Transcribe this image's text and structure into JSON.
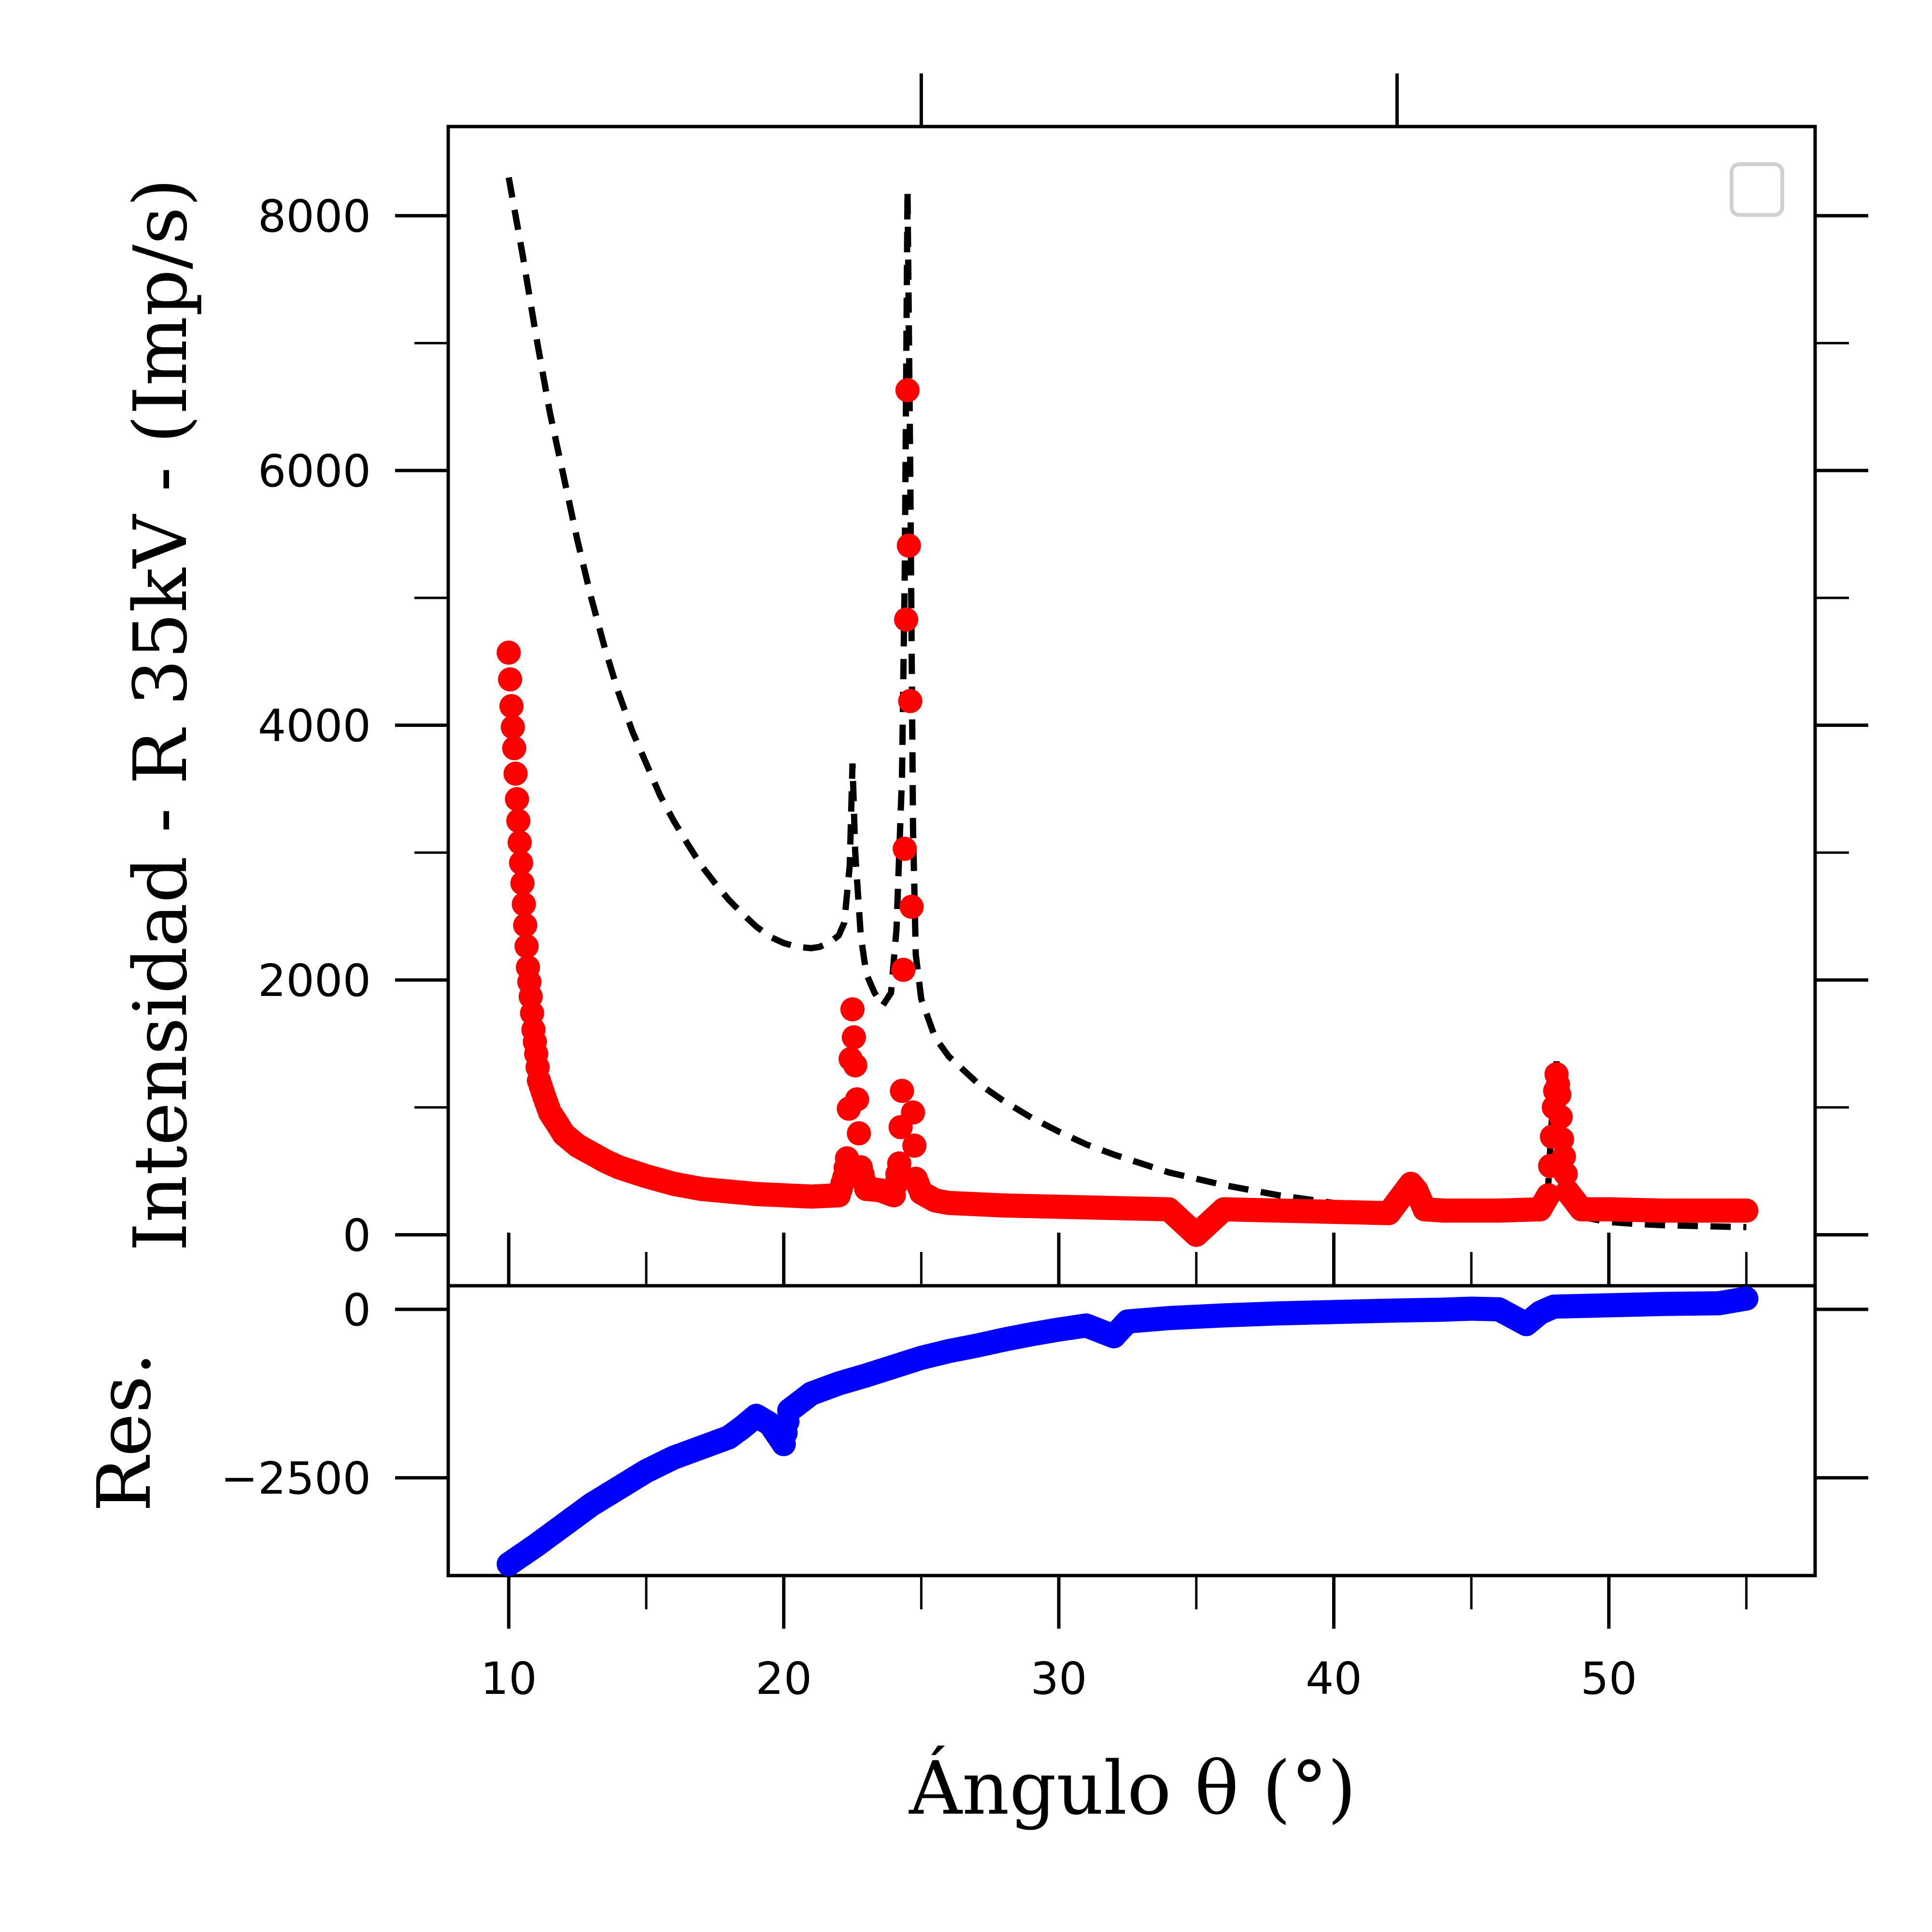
{
  "chart_data": [
    {
      "type": "scatter",
      "panel": "main",
      "ylabel": "Intensidad - R 35kV - (Imp/s)",
      "xlim": [
        7.8,
        57.5
      ],
      "ylim": [
        -400,
        8700
      ],
      "x_ticks_major": [
        10,
        20,
        30,
        40,
        50
      ],
      "x_ticks_minor": [
        15,
        25,
        35,
        45,
        55
      ],
      "y_ticks_major": [
        0,
        2000,
        4000,
        6000,
        8000
      ],
      "y_ticks_minor": [
        1000,
        3000,
        5000,
        7000
      ],
      "y_tick_labels": [
        "0",
        "2000",
        "4000",
        "6000",
        "8000"
      ],
      "top_ticks": [
        25,
        42.3
      ],
      "legend": {
        "placement": "top-right",
        "entries": []
      },
      "grid": false,
      "series": [
        {
          "style": "dashed-line",
          "color": "#000000",
          "points": [
            [
              10,
              8300
            ],
            [
              10.5,
              7700
            ],
            [
              11,
              7050
            ],
            [
              11.5,
              6450
            ],
            [
              12,
              5950
            ],
            [
              12.5,
              5450
            ],
            [
              13,
              5000
            ],
            [
              13.5,
              4600
            ],
            [
              14,
              4250
            ],
            [
              14.5,
              3950
            ],
            [
              15,
              3700
            ],
            [
              15.5,
              3450
            ],
            [
              16,
              3250
            ],
            [
              16.5,
              3070
            ],
            [
              17,
              2900
            ],
            [
              17.5,
              2760
            ],
            [
              18,
              2630
            ],
            [
              18.5,
              2520
            ],
            [
              19,
              2420
            ],
            [
              19.5,
              2340
            ],
            [
              20,
              2290
            ],
            [
              20.5,
              2260
            ],
            [
              21,
              2250
            ],
            [
              21.3,
              2260
            ],
            [
              21.7,
              2300
            ],
            [
              22,
              2350
            ],
            [
              22.2,
              2450
            ],
            [
              22.4,
              2900
            ],
            [
              22.5,
              3700
            ],
            [
              22.6,
              3000
            ],
            [
              22.8,
              2350
            ],
            [
              23,
              2050
            ],
            [
              23.3,
              1900
            ],
            [
              23.6,
              1800
            ],
            [
              23.9,
              1900
            ],
            [
              24.1,
              2400
            ],
            [
              24.3,
              3600
            ],
            [
              24.4,
              5200
            ],
            [
              24.5,
              8200
            ],
            [
              24.6,
              6000
            ],
            [
              24.7,
              3200
            ],
            [
              24.8,
              2200
            ],
            [
              25,
              1850
            ],
            [
              25.5,
              1550
            ],
            [
              26,
              1400
            ],
            [
              27,
              1200
            ],
            [
              28,
              1050
            ],
            [
              29,
              920
            ],
            [
              30,
              810
            ],
            [
              31,
              710
            ],
            [
              32,
              630
            ],
            [
              33,
              560
            ],
            [
              34,
              490
            ],
            [
              35,
              440
            ],
            [
              36,
              390
            ],
            [
              37,
              350
            ],
            [
              38,
              310
            ],
            [
              39,
              280
            ],
            [
              40,
              250
            ],
            [
              41,
              225
            ],
            [
              42,
              205
            ],
            [
              42.5,
              210
            ],
            [
              42.8,
              380
            ],
            [
              43,
              300
            ],
            [
              43.3,
              190
            ],
            [
              44,
              170
            ],
            [
              45,
              150
            ],
            [
              46,
              135
            ],
            [
              47,
              130
            ],
            [
              47.5,
              150
            ],
            [
              47.8,
              400
            ],
            [
              48,
              1200
            ],
            [
              48.1,
              1360
            ],
            [
              48.2,
              1100
            ],
            [
              48.5,
              300
            ],
            [
              49,
              140
            ],
            [
              50,
              100
            ],
            [
              51,
              85
            ],
            [
              52,
              75
            ],
            [
              53,
              70
            ],
            [
              54,
              65
            ],
            [
              55,
              60
            ]
          ]
        },
        {
          "style": "markers",
          "color": "#ff0000",
          "description": "",
          "baseline": [
            [
              10,
              4570
            ],
            [
              10.1,
              4150
            ],
            [
              10.2,
              3820
            ],
            [
              10.3,
              3420
            ],
            [
              10.4,
              3080
            ],
            [
              10.5,
              2760
            ],
            [
              10.6,
              2430
            ],
            [
              10.7,
              2100
            ],
            [
              10.8,
              1870
            ],
            [
              10.9,
              1610
            ],
            [
              11,
              1420
            ],
            [
              11.1,
              1210
            ],
            [
              11.3,
              1080
            ],
            [
              11.5,
              960
            ],
            [
              11.8,
              860
            ],
            [
              12,
              790
            ],
            [
              12.5,
              700
            ],
            [
              13,
              640
            ],
            [
              13.5,
              580
            ],
            [
              14,
              530
            ],
            [
              15,
              460
            ],
            [
              16,
              400
            ],
            [
              17,
              360
            ],
            [
              18,
              340
            ],
            [
              19,
              320
            ],
            [
              20,
              310
            ],
            [
              21,
              300
            ],
            [
              22,
              310
            ],
            [
              22.2,
              450
            ],
            [
              22.3,
              600
            ],
            [
              22.5,
              1770
            ],
            [
              22.6,
              1330
            ],
            [
              22.8,
              530
            ],
            [
              23,
              360
            ],
            [
              23.5,
              350
            ],
            [
              24,
              310
            ],
            [
              24.2,
              560
            ],
            [
              24.3,
              1130
            ],
            [
              24.4,
              3030
            ],
            [
              24.5,
              6630
            ],
            [
              24.6,
              4190
            ],
            [
              24.7,
              960
            ],
            [
              24.8,
              440
            ],
            [
              25,
              330
            ],
            [
              25.5,
              270
            ],
            [
              26,
              250
            ],
            [
              28,
              230
            ],
            [
              30,
              220
            ],
            [
              32,
              210
            ],
            [
              34,
              200
            ],
            [
              35,
              0
            ],
            [
              36,
              200
            ],
            [
              38,
              190
            ],
            [
              40,
              180
            ],
            [
              42,
              170
            ],
            [
              42.8,
              400
            ],
            [
              43,
              350
            ],
            [
              43.3,
              200
            ],
            [
              44,
              190
            ],
            [
              46,
              190
            ],
            [
              47.5,
              200
            ],
            [
              47.8,
              310
            ],
            [
              48,
              1000
            ],
            [
              48.1,
              1260
            ],
            [
              48.2,
              1100
            ],
            [
              48.3,
              750
            ],
            [
              48.5,
              340
            ],
            [
              49,
              200
            ],
            [
              50,
              200
            ],
            [
              52,
              190
            ],
            [
              54,
              190
            ],
            [
              55,
              190
            ]
          ]
        }
      ]
    },
    {
      "type": "scatter",
      "panel": "residuals",
      "xlabel": "Ángulo θ (°)",
      "ylabel": "Res.",
      "xlim": [
        7.8,
        57.5
      ],
      "ylim": [
        -3950,
        350
      ],
      "x_ticks_major": [
        10,
        20,
        30,
        40,
        50
      ],
      "x_tick_labels": [
        "10",
        "20",
        "30",
        "40",
        "50"
      ],
      "x_ticks_minor": [
        15,
        25,
        35,
        45,
        55
      ],
      "y_ticks_major": [
        0,
        -2500
      ],
      "y_tick_labels": [
        "0",
        "−2500"
      ],
      "grid": false,
      "series": [
        {
          "style": "markers",
          "color": "#0000ff",
          "points": [
            [
              10,
              -3780
            ],
            [
              11,
              -3500
            ],
            [
              12,
              -3200
            ],
            [
              13,
              -2900
            ],
            [
              14,
              -2650
            ],
            [
              15,
              -2400
            ],
            [
              16,
              -2200
            ],
            [
              17,
              -2050
            ],
            [
              18,
              -1900
            ],
            [
              18.5,
              -1750
            ],
            [
              19,
              -1580
            ],
            [
              19.5,
              -1700
            ],
            [
              20,
              -2000
            ],
            [
              20.2,
              -1500
            ],
            [
              21,
              -1250
            ],
            [
              22,
              -1100
            ],
            [
              23,
              -980
            ],
            [
              24,
              -850
            ],
            [
              25,
              -720
            ],
            [
              26,
              -620
            ],
            [
              27,
              -540
            ],
            [
              28,
              -450
            ],
            [
              29,
              -370
            ],
            [
              30,
              -300
            ],
            [
              31,
              -240
            ],
            [
              32,
              -400
            ],
            [
              32.5,
              -180
            ],
            [
              34,
              -130
            ],
            [
              36,
              -90
            ],
            [
              38,
              -60
            ],
            [
              40,
              -40
            ],
            [
              42,
              -20
            ],
            [
              44,
              -5
            ],
            [
              45,
              10
            ],
            [
              46,
              0
            ],
            [
              47,
              -220
            ],
            [
              47.5,
              -50
            ],
            [
              48,
              40
            ],
            [
              50,
              60
            ],
            [
              52,
              80
            ],
            [
              54,
              90
            ],
            [
              55,
              160
            ]
          ]
        }
      ]
    }
  ]
}
